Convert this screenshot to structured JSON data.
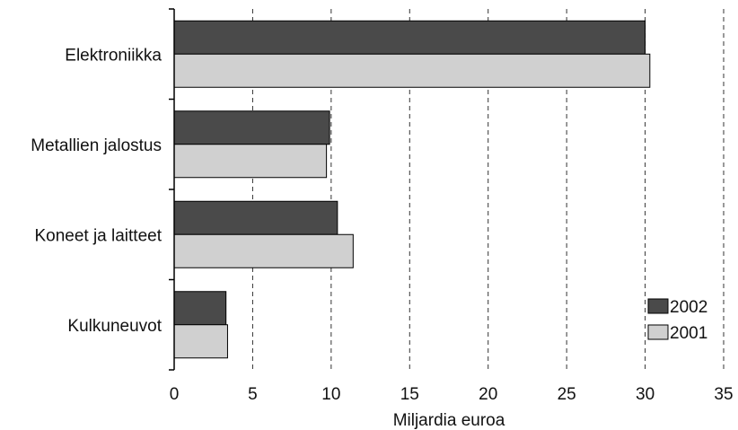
{
  "chart_data": {
    "type": "bar",
    "orientation": "horizontal",
    "categories": [
      "Elektroniikka",
      "Metallien jalostus",
      "Koneet ja laitteet",
      "Kulkuneuvot"
    ],
    "series": [
      {
        "name": "2002",
        "values": [
          30.0,
          9.9,
          10.4,
          3.3
        ],
        "color": "#4a4a4a"
      },
      {
        "name": "2001",
        "values": [
          30.3,
          9.7,
          11.4,
          3.4
        ],
        "color": "#d0d0d0"
      }
    ],
    "xlabel": "Miljardia euroa",
    "xlim": [
      0,
      35
    ],
    "xticks": [
      0,
      5,
      10,
      15,
      20,
      25,
      30,
      35
    ],
    "grid": "vertical-dashed",
    "legend": {
      "placement": "bottom-right",
      "entries": [
        "2002",
        "2001"
      ]
    }
  }
}
